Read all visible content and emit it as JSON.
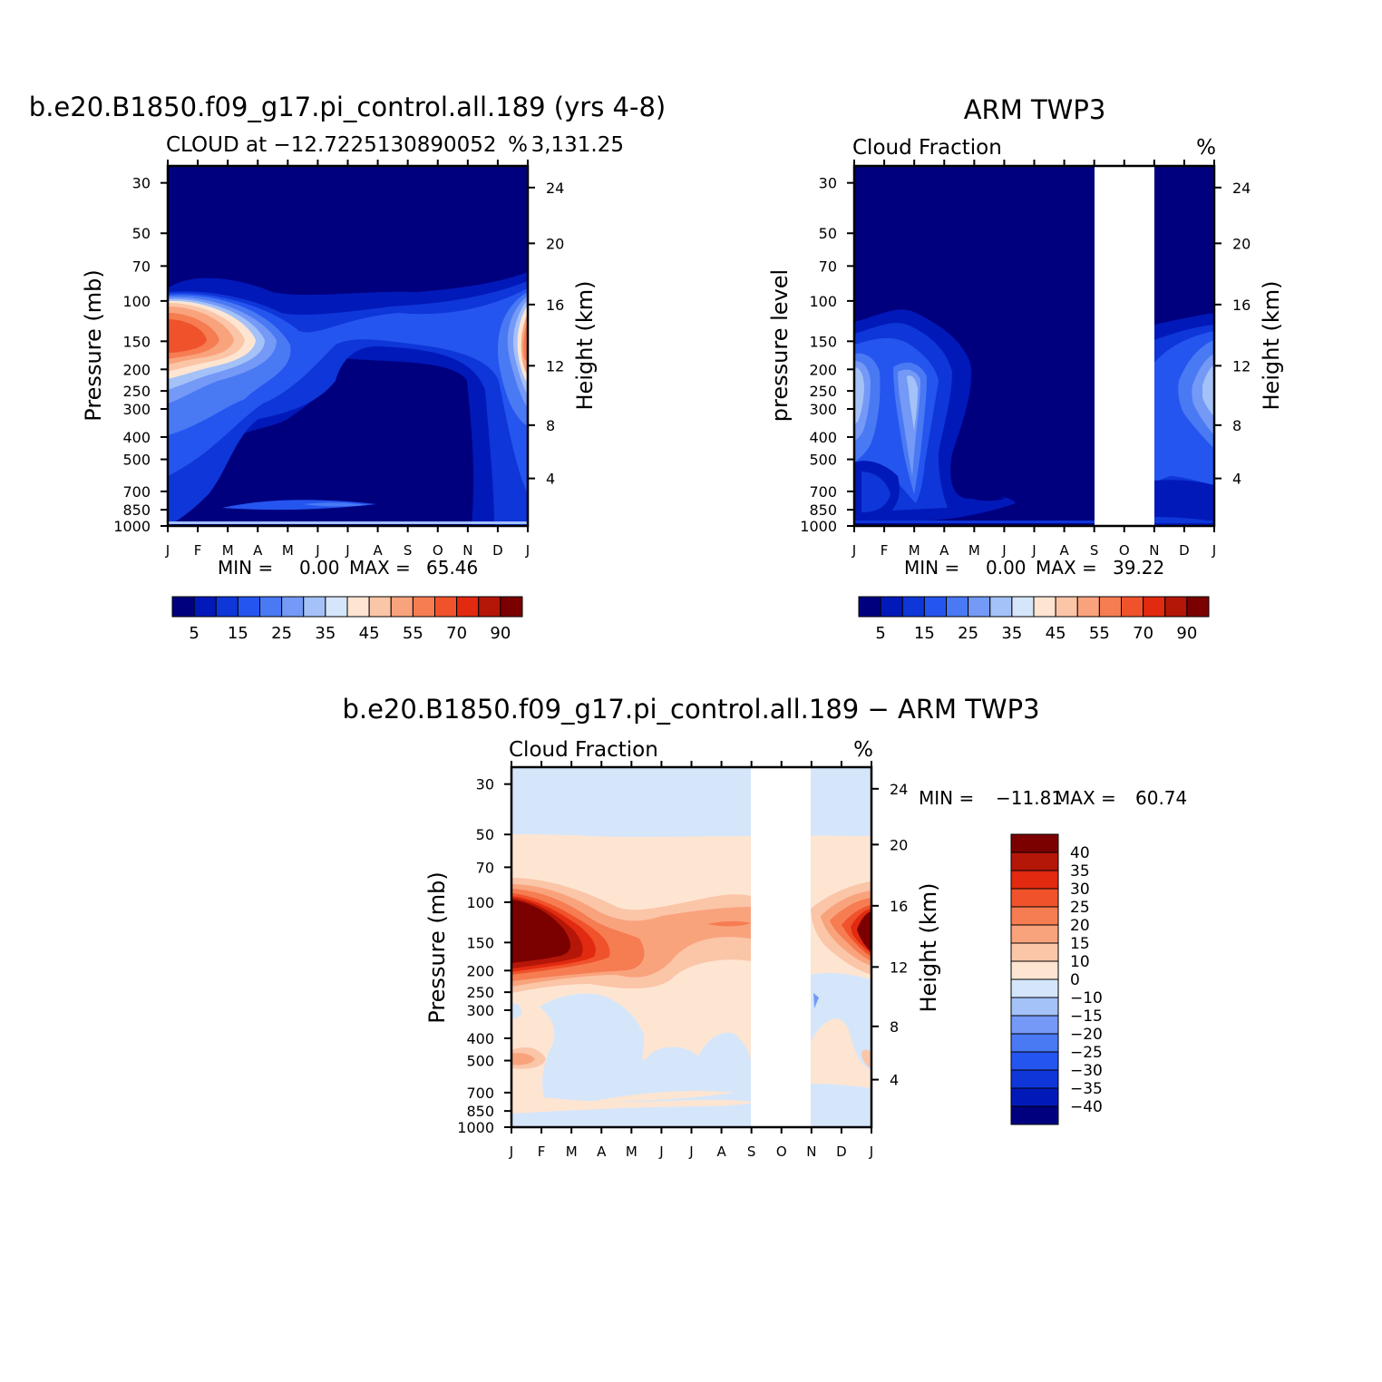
{
  "chart_data": [
    {
      "type": "heatmap",
      "main_title": "b.e20.B1850.f09_g17.pi_control.all.189 (yrs 4-8)",
      "left_string": "CLOUD at −12.7225130890052",
      "right_string": "%",
      "right_string2": "3,131.25",
      "ylabel": "Pressure (mb)",
      "ylabel_right": "Height (km)",
      "x_ticks": [
        "J",
        "F",
        "M",
        "A",
        "M",
        "J",
        "J",
        "A",
        "S",
        "O",
        "N",
        "D",
        "J"
      ],
      "y_ticks": [
        "30",
        "50",
        "70",
        "100",
        "150",
        "200",
        "250",
        "300",
        "400",
        "500",
        "700",
        "850",
        "1000"
      ],
      "y_ticks_right": [
        "24",
        "20",
        "16",
        "12",
        "8",
        "4"
      ],
      "stats": {
        "min_label": "MIN =",
        "min": "0.00",
        "max_label": "MAX =",
        "max": "65.46"
      },
      "colorbar_labels": [
        "5",
        "15",
        "25",
        "35",
        "45",
        "55",
        "70",
        "90"
      ],
      "missing_months": [],
      "value_range": [
        0,
        65.46
      ]
    },
    {
      "type": "heatmap",
      "main_title": "ARM TWP3",
      "left_string": "Cloud Fraction",
      "right_string": "%",
      "ylabel": "pressure level",
      "ylabel_right": "Height (km)",
      "x_ticks": [
        "J",
        "F",
        "M",
        "A",
        "M",
        "J",
        "J",
        "A",
        "S",
        "O",
        "N",
        "D",
        "J"
      ],
      "y_ticks": [
        "30",
        "50",
        "70",
        "100",
        "150",
        "200",
        "250",
        "300",
        "400",
        "500",
        "700",
        "850",
        "1000"
      ],
      "y_ticks_right": [
        "24",
        "20",
        "16",
        "12",
        "8",
        "4"
      ],
      "stats": {
        "min_label": "MIN =",
        "min": "0.00",
        "max_label": "MAX =",
        "max": "39.22"
      },
      "colorbar_labels": [
        "5",
        "15",
        "25",
        "35",
        "45",
        "55",
        "70",
        "90"
      ],
      "missing_months": [
        "S",
        "O"
      ],
      "value_range": [
        0,
        39.22
      ]
    },
    {
      "type": "heatmap",
      "main_title": "b.e20.B1850.f09_g17.pi_control.all.189 − ARM TWP3",
      "left_string": "Cloud Fraction",
      "right_string": "%",
      "ylabel": "Pressure (mb)",
      "ylabel_right": "Height (km)",
      "x_ticks": [
        "J",
        "F",
        "M",
        "A",
        "M",
        "J",
        "J",
        "A",
        "S",
        "O",
        "N",
        "D",
        "J"
      ],
      "y_ticks": [
        "30",
        "50",
        "70",
        "100",
        "150",
        "200",
        "250",
        "300",
        "400",
        "500",
        "700",
        "850",
        "1000"
      ],
      "y_ticks_right": [
        "24",
        "20",
        "16",
        "12",
        "8",
        "4"
      ],
      "stats": {
        "min_label": "MIN =",
        "min": "−11.81",
        "max_label": "MAX =",
        "max": "60.74"
      },
      "colorbar_labels": [
        "40",
        "35",
        "30",
        "25",
        "20",
        "15",
        "10",
        "0",
        "−10",
        "−15",
        "−20",
        "−25",
        "−30",
        "−35",
        "−40"
      ],
      "missing_months": [
        "S",
        "O"
      ],
      "value_range": [
        -11.81,
        60.74
      ]
    }
  ],
  "colors": {
    "sequential": [
      "#00007f",
      "#0219b9",
      "#0e36d8",
      "#2555ef",
      "#4a79f4",
      "#7499f6",
      "#a4c2f8",
      "#d5e6fb",
      "#fde5d2",
      "#fbc5a8",
      "#f9a37d",
      "#f67c52",
      "#f0532c",
      "#e12a10",
      "#b41608",
      "#7b0000"
    ],
    "diverging": [
      "#00007f",
      "#0219b9",
      "#0e36d8",
      "#2555ef",
      "#4a79f4",
      "#7499f6",
      "#a4c2f8",
      "#d5e6fb",
      "#fde5d2",
      "#fbc5a8",
      "#f9a37d",
      "#f67c52",
      "#f0532c",
      "#e12a10",
      "#b41608",
      "#7b0000"
    ]
  }
}
